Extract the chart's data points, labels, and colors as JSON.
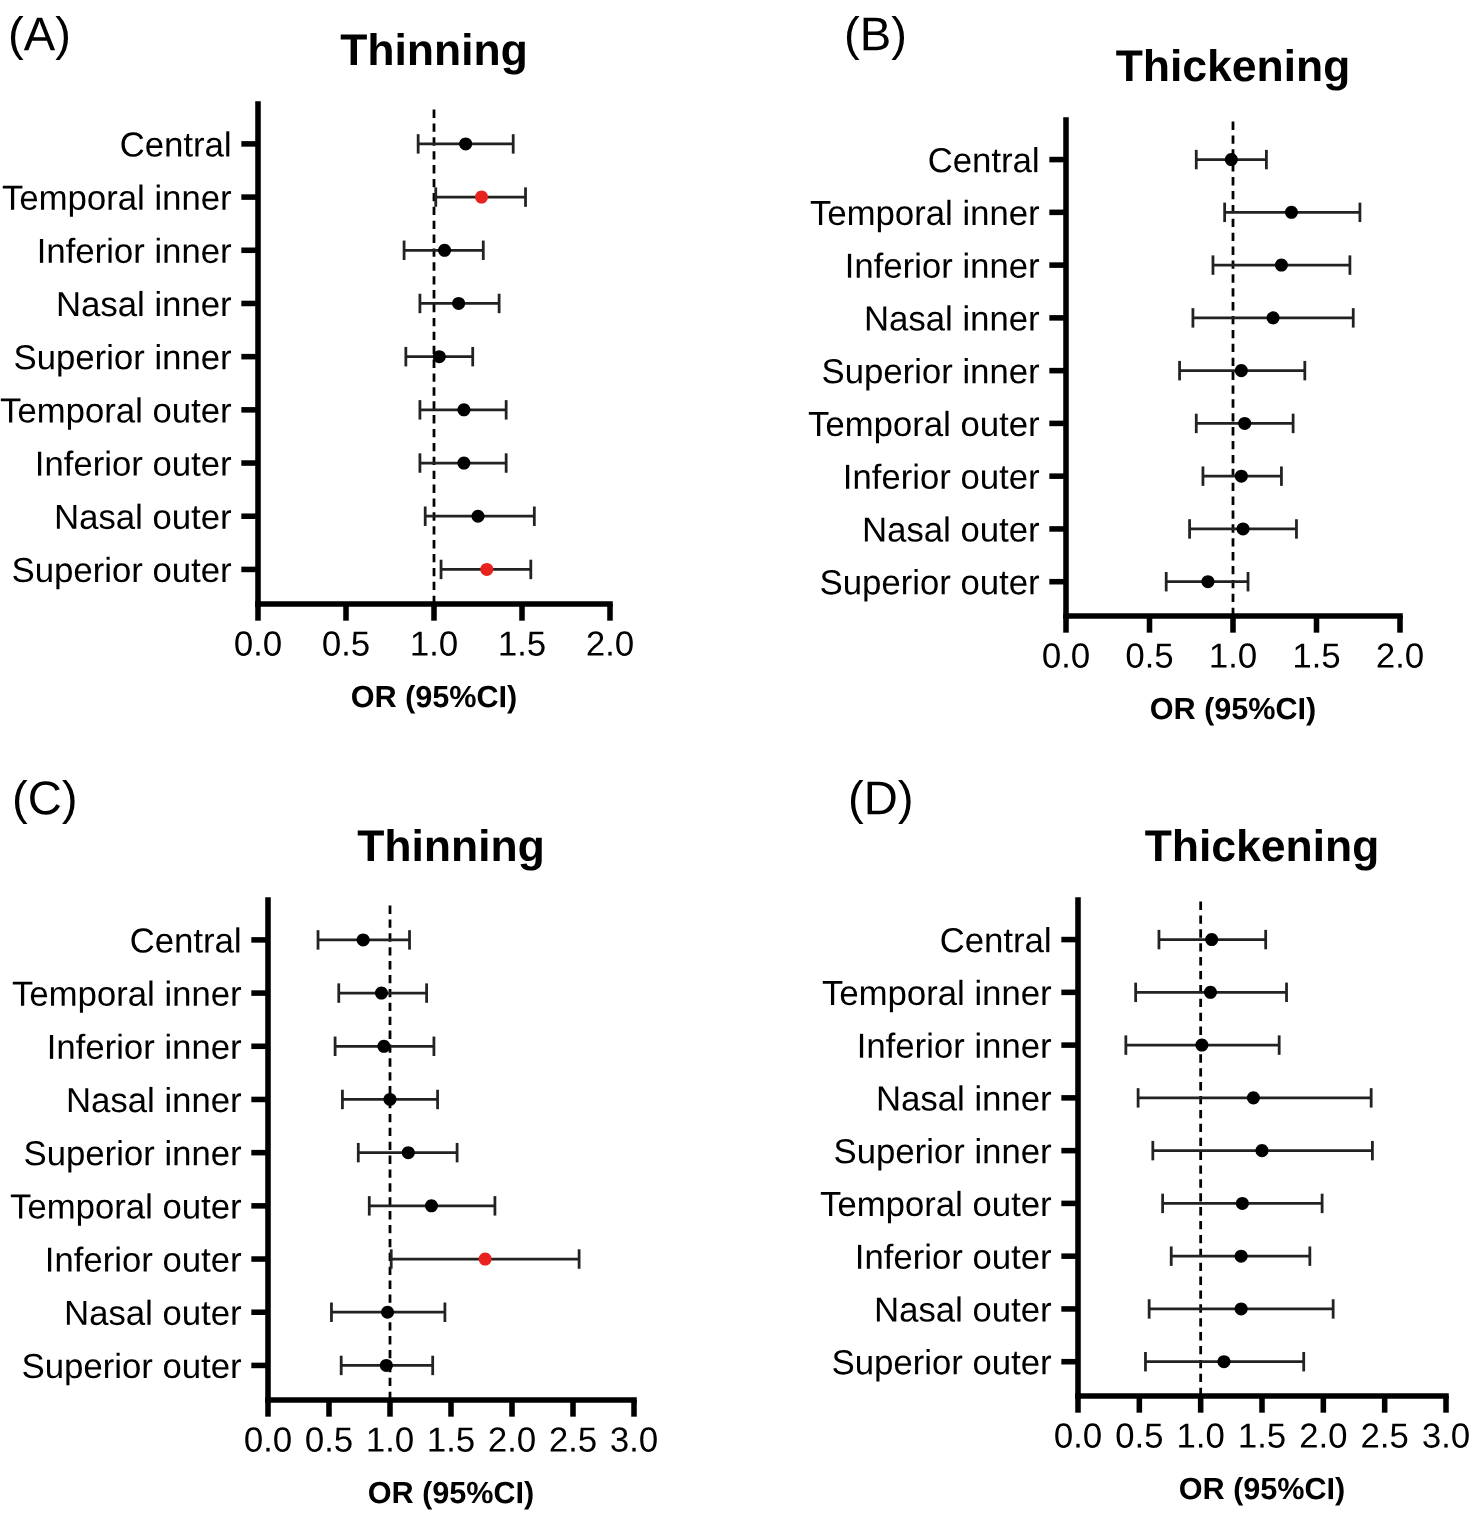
{
  "chart_data": [
    {
      "type": "scatter",
      "orientation": "horizontal",
      "title": "Thinning",
      "xlabel": "OR (95%CI)",
      "annotations": [
        "(A)"
      ],
      "categories": [
        "Central",
        "Temporal inner",
        "Inferior inner",
        "Nasal inner",
        "Superior inner",
        "Temporal outer",
        "Inferior outer",
        "Nasal outer",
        "Superior outer"
      ],
      "values": [
        1.18,
        1.27,
        1.06,
        1.14,
        1.03,
        1.17,
        1.17,
        1.25,
        1.3
      ],
      "errors": [
        [
          0.91,
          1.45
        ],
        [
          1.01,
          1.52
        ],
        [
          0.83,
          1.28
        ],
        [
          0.92,
          1.37
        ],
        [
          0.84,
          1.22
        ],
        [
          0.92,
          1.41
        ],
        [
          0.92,
          1.41
        ],
        [
          0.95,
          1.57
        ],
        [
          1.04,
          1.55
        ]
      ],
      "colors": [
        "#000000",
        "#e8231f",
        "#000000",
        "#000000",
        "#000000",
        "#000000",
        "#000000",
        "#000000",
        "#e8231f"
      ],
      "marker": "circle",
      "xlim": [
        0,
        2
      ],
      "xticks": [
        {
          "value": 0,
          "label": "0.0"
        },
        0.5,
        {
          "value": 1,
          "label": "1.0"
        },
        1.5,
        {
          "value": 2,
          "label": "2.0"
        }
      ],
      "ref_lines": [
        {
          "axis": "x",
          "value": 1,
          "line_style": "dashed",
          "color": "#000000"
        }
      ],
      "grid": false,
      "legend": false
    },
    {
      "type": "scatter",
      "orientation": "horizontal",
      "title": "Thickening",
      "xlabel": "OR (95%CI)",
      "annotations": [
        "(B)"
      ],
      "categories": [
        "Central",
        "Temporal inner",
        "Inferior inner",
        "Nasal inner",
        "Superior inner",
        "Temporal outer",
        "Inferior outer",
        "Nasal outer",
        "Superior outer"
      ],
      "values": [
        0.99,
        1.35,
        1.29,
        1.24,
        1.05,
        1.07,
        1.05,
        1.06,
        0.85
      ],
      "errors": [
        [
          0.78,
          1.2
        ],
        [
          0.95,
          1.76
        ],
        [
          0.88,
          1.7
        ],
        [
          0.76,
          1.72
        ],
        [
          0.68,
          1.43
        ],
        [
          0.78,
          1.36
        ],
        [
          0.82,
          1.29
        ],
        [
          0.74,
          1.38
        ],
        [
          0.6,
          1.09
        ]
      ],
      "colors": [
        "#000000",
        "#000000",
        "#000000",
        "#000000",
        "#000000",
        "#000000",
        "#000000",
        "#000000",
        "#000000"
      ],
      "marker": "circle",
      "xlim": [
        0,
        2
      ],
      "xticks": [
        {
          "value": 0,
          "label": "0.0"
        },
        0.5,
        {
          "value": 1,
          "label": "1.0"
        },
        1.5,
        {
          "value": 2,
          "label": "2.0"
        }
      ],
      "ref_lines": [
        {
          "axis": "x",
          "value": 1,
          "line_style": "dashed",
          "color": "#000000"
        }
      ],
      "grid": false,
      "legend": false
    },
    {
      "type": "scatter",
      "orientation": "horizontal",
      "title": "Thinning",
      "xlabel": "OR (95%CI)",
      "annotations": [
        "(C)"
      ],
      "categories": [
        "Central",
        "Temporal inner",
        "Inferior inner",
        "Nasal inner",
        "Superior inner",
        "Temporal outer",
        "Inferior outer",
        "Nasal outer",
        "Superior outer"
      ],
      "values": [
        0.78,
        0.93,
        0.95,
        1.0,
        1.15,
        1.34,
        1.78,
        0.98,
        0.97
      ],
      "errors": [
        [
          0.41,
          1.16
        ],
        [
          0.58,
          1.3
        ],
        [
          0.55,
          1.36
        ],
        [
          0.61,
          1.39
        ],
        [
          0.74,
          1.55
        ],
        [
          0.83,
          1.86
        ],
        [
          1.01,
          2.55
        ],
        [
          0.52,
          1.45
        ],
        [
          0.6,
          1.35
        ]
      ],
      "colors": [
        "#000000",
        "#000000",
        "#000000",
        "#000000",
        "#000000",
        "#000000",
        "#e8231f",
        "#000000",
        "#000000"
      ],
      "marker": "circle",
      "xlim": [
        0,
        3
      ],
      "xticks": [
        {
          "value": 0,
          "label": "0.0"
        },
        0.5,
        {
          "value": 1,
          "label": "1.0"
        },
        1.5,
        {
          "value": 2,
          "label": "2.0"
        },
        2.5,
        {
          "value": 3,
          "label": "3.0"
        }
      ],
      "ref_lines": [
        {
          "axis": "x",
          "value": 1,
          "line_style": "dashed",
          "color": "#000000"
        }
      ],
      "grid": false,
      "legend": false
    },
    {
      "type": "scatter",
      "orientation": "horizontal",
      "title": "Thickening",
      "xlabel": "OR (95%CI)",
      "annotations": [
        "(D)"
      ],
      "categories": [
        "Central",
        "Temporal inner",
        "Inferior inner",
        "Nasal inner",
        "Superior inner",
        "Temporal outer",
        "Inferior outer",
        "Nasal outer",
        "Superior outer"
      ],
      "values": [
        1.09,
        1.08,
        1.01,
        1.43,
        1.5,
        1.34,
        1.33,
        1.33,
        1.19
      ],
      "errors": [
        [
          0.66,
          1.53
        ],
        [
          0.47,
          1.7
        ],
        [
          0.39,
          1.64
        ],
        [
          0.49,
          2.39
        ],
        [
          0.61,
          2.4
        ],
        [
          0.69,
          1.99
        ],
        [
          0.76,
          1.89
        ],
        [
          0.58,
          2.08
        ],
        [
          0.55,
          1.84
        ]
      ],
      "colors": [
        "#000000",
        "#000000",
        "#000000",
        "#000000",
        "#000000",
        "#000000",
        "#000000",
        "#000000",
        "#000000"
      ],
      "marker": "circle",
      "xlim": [
        0,
        3
      ],
      "xticks": [
        {
          "value": 0,
          "label": "0.0"
        },
        0.5,
        {
          "value": 1,
          "label": "1.0"
        },
        1.5,
        {
          "value": 2,
          "label": "2.0"
        },
        2.5,
        {
          "value": 3,
          "label": "3.0"
        }
      ],
      "ref_lines": [
        {
          "axis": "x",
          "value": 1,
          "line_style": "dashed",
          "color": "#000000"
        }
      ],
      "grid": false,
      "legend": false
    }
  ]
}
